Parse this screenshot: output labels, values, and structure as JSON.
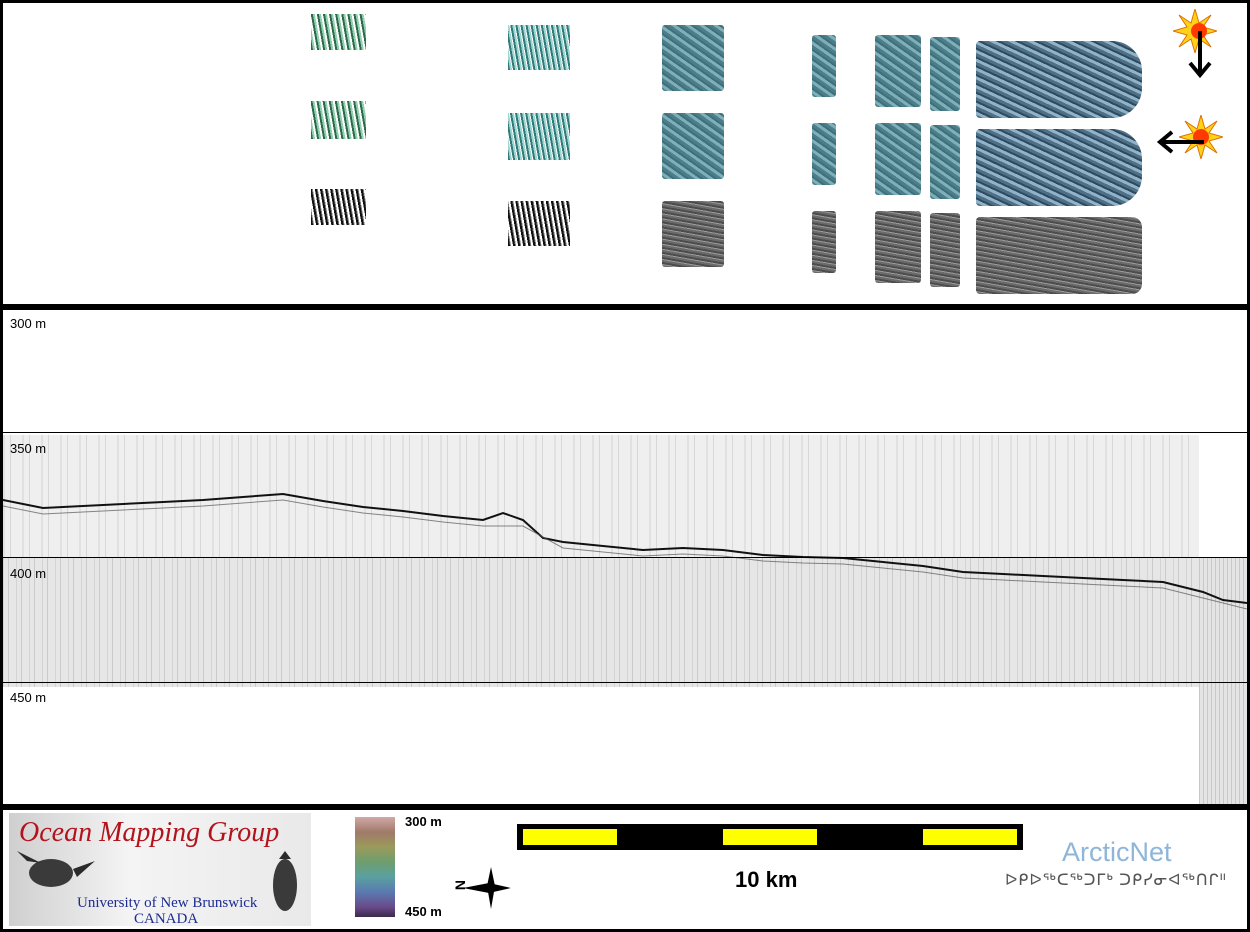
{
  "profile": {
    "depth_labels": [
      "300 m",
      "350 m",
      "400 m",
      "450 m"
    ]
  },
  "footer": {
    "logo": {
      "title": "Ocean Mapping Group",
      "university": "University of New Brunswick",
      "country": "CANADA"
    },
    "colorbar": {
      "top_label": "300 m",
      "bottom_label": "450 m"
    },
    "north_arrow": {
      "letter": "N"
    },
    "scalebar": {
      "label": "10 km"
    },
    "partner": {
      "name": "ArcticNet",
      "syllabics": "ᐅᑭᐅᖅᑕᖅᑐᒥᒃ ᑐᑭᓯᓂᐊᖅᑎᒋᐦ"
    }
  },
  "colors": {
    "scale_yellow": "#ffff00",
    "logo_red": "#b3131b",
    "logo_blue": "#1d2c8f",
    "arcticnet_blue": "#8fb6d8"
  },
  "icons": [
    "sun-illumination-icon",
    "arrow-down-icon",
    "arrow-left-icon",
    "north-arrow-icon"
  ]
}
